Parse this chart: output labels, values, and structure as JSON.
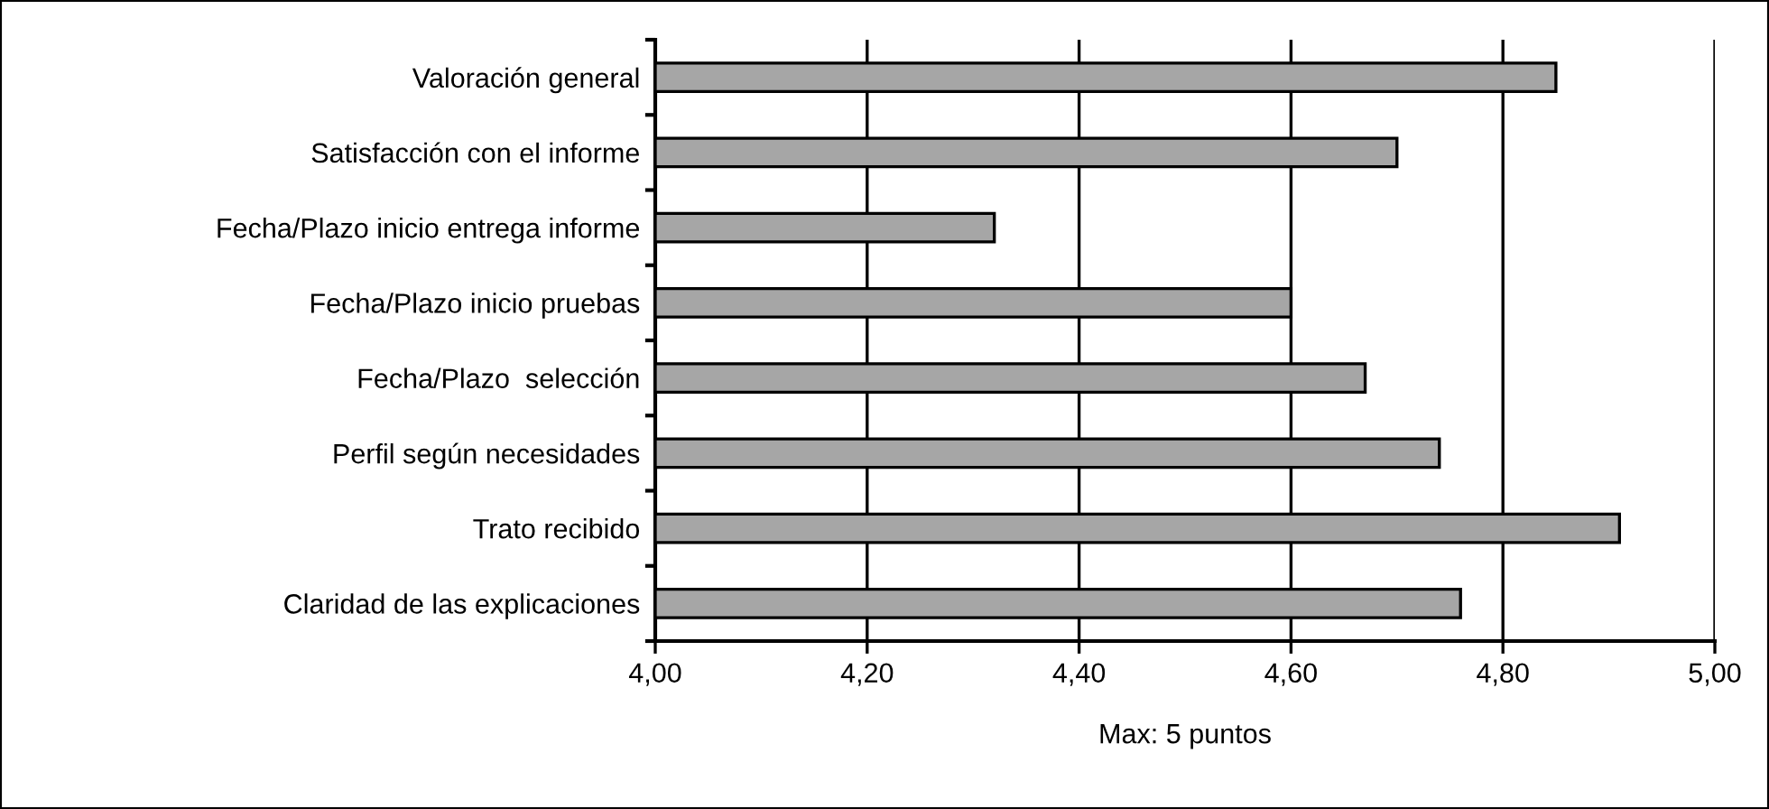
{
  "chart_data": {
    "type": "bar",
    "orientation": "horizontal",
    "categories": [
      "Valoración general",
      "Satisfacción con el informe",
      "Fecha/Plazo inicio entrega informe",
      "Fecha/Plazo inicio pruebas",
      "Fecha/Plazo  selección",
      "Perfil según necesidades",
      "Trato recibido",
      "Claridad de las explicaciones"
    ],
    "values": [
      4.85,
      4.7,
      4.32,
      4.6,
      4.67,
      4.74,
      4.91,
      4.76
    ],
    "color": "#a6a6a6",
    "xlim": [
      4.0,
      5.0
    ],
    "xticks": [
      {
        "value": 4.0,
        "label": "4,00"
      },
      {
        "value": 4.2,
        "label": "4,20"
      },
      {
        "value": 4.4,
        "label": "4,40"
      },
      {
        "value": 4.6,
        "label": "4,60"
      },
      {
        "value": 4.8,
        "label": "4,80"
      },
      {
        "value": 5.0,
        "label": "5,00"
      }
    ],
    "xlabel": "Max: 5 puntos",
    "grid": "x",
    "legend": false
  }
}
